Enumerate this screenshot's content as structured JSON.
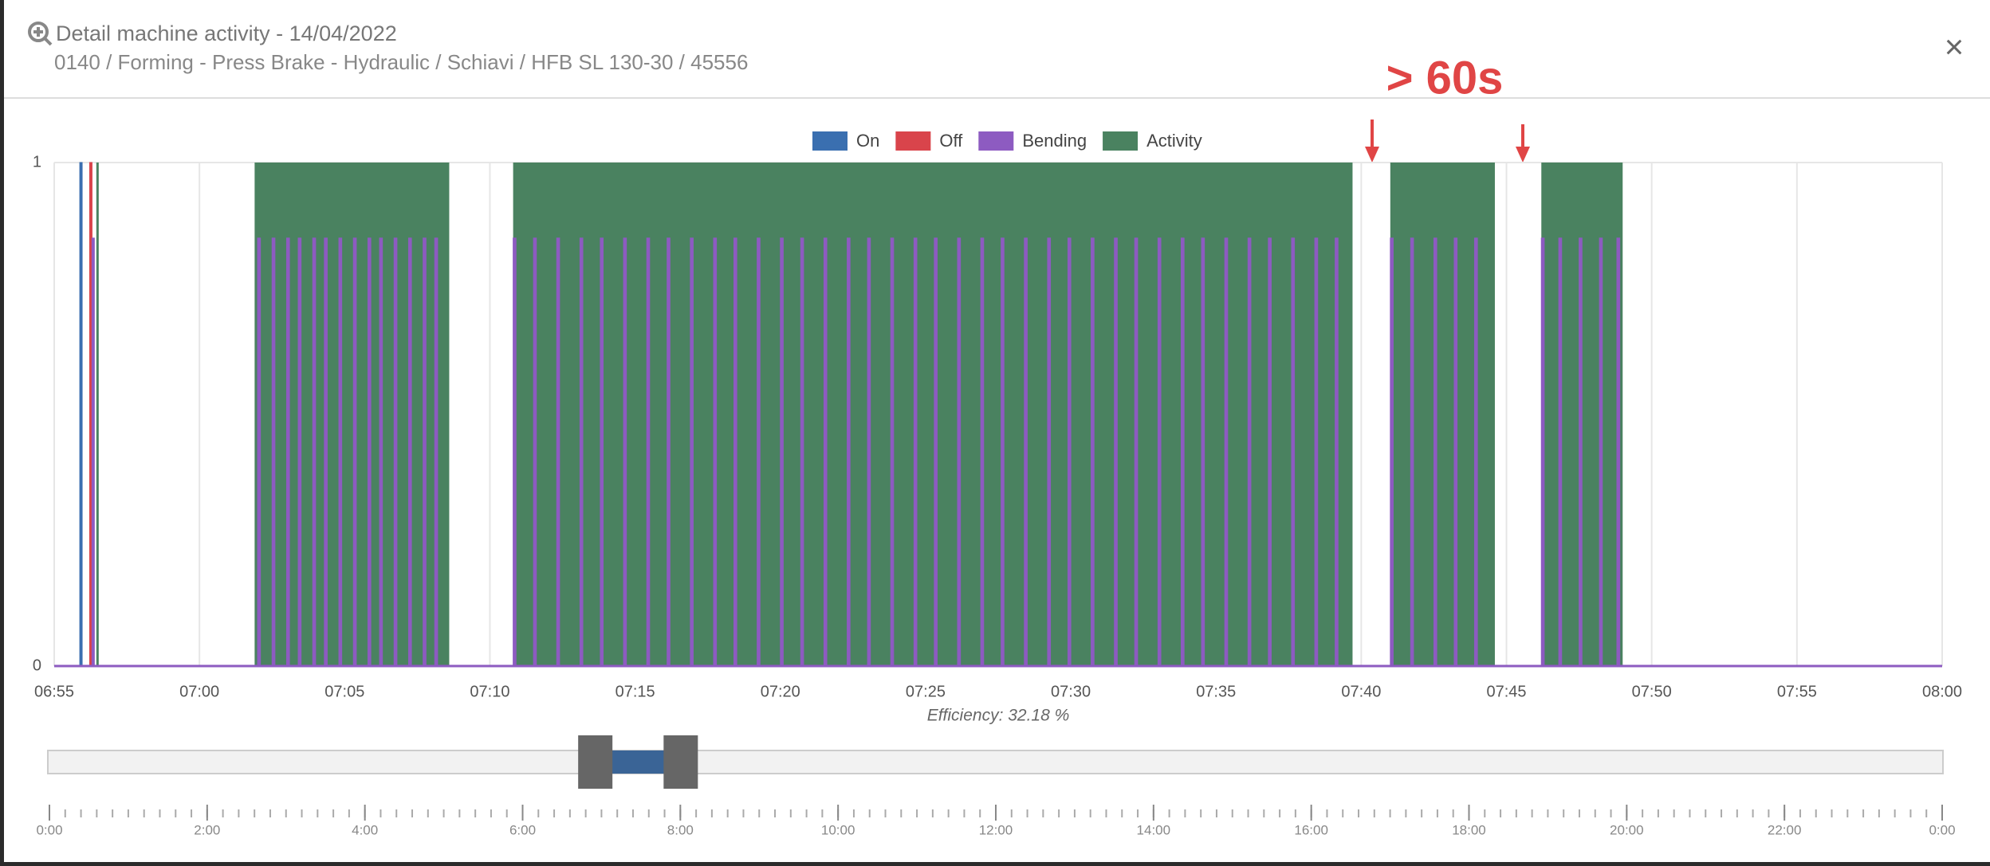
{
  "header": {
    "title": "Detail machine activity - 14/04/2022",
    "subtitle": "0140 / Forming - Press Brake - Hydraulic / Schiavi / HFB SL 130-30 / 45556",
    "close": "×"
  },
  "chart_data": {
    "type": "timeline",
    "annotation": "> 60s",
    "xlim": [
      415,
      480
    ],
    "xticks": [
      {
        "value": 415,
        "label": "06:55"
      },
      {
        "value": 420,
        "label": "07:00"
      },
      {
        "value": 425,
        "label": "07:05"
      },
      {
        "value": 430,
        "label": "07:10"
      },
      {
        "value": 435,
        "label": "07:15"
      },
      {
        "value": 440,
        "label": "07:20"
      },
      {
        "value": 445,
        "label": "07:25"
      },
      {
        "value": 450,
        "label": "07:30"
      },
      {
        "value": 455,
        "label": "07:35"
      },
      {
        "value": 460,
        "label": "07:40"
      },
      {
        "value": 465,
        "label": "07:45"
      },
      {
        "value": 470,
        "label": "07:50"
      },
      {
        "value": 475,
        "label": "07:55"
      },
      {
        "value": 480,
        "label": "08:00"
      }
    ],
    "ylim": [
      0,
      1
    ],
    "yticks": [
      0,
      1
    ],
    "grid": true,
    "series": [
      {
        "name": "On",
        "color": "#3a6fb0",
        "level": 1,
        "intervals": [
          [
            415.88,
            415.95
          ]
        ]
      },
      {
        "name": "Off",
        "color": "#d9444b",
        "level": 1,
        "intervals": [
          [
            416.22,
            416.28
          ]
        ]
      },
      {
        "name": "Bending",
        "color": "#8d5bc1",
        "level": 0.85,
        "intervals": [
          [
            416.3,
            416.36
          ],
          [
            422.0,
            422.1
          ],
          [
            422.5,
            422.6
          ],
          [
            423.0,
            423.1
          ],
          [
            423.4,
            423.5
          ],
          [
            423.9,
            424.0
          ],
          [
            424.3,
            424.4
          ],
          [
            424.8,
            424.9
          ],
          [
            425.3,
            425.4
          ],
          [
            425.8,
            425.9
          ],
          [
            426.2,
            426.3
          ],
          [
            426.7,
            426.8
          ],
          [
            427.2,
            427.3
          ],
          [
            427.7,
            427.8
          ],
          [
            428.1,
            428.2
          ],
          [
            430.8,
            430.9
          ],
          [
            431.5,
            431.6
          ],
          [
            432.3,
            432.4
          ],
          [
            433.1,
            433.2
          ],
          [
            433.8,
            433.9
          ],
          [
            434.6,
            434.7
          ],
          [
            435.4,
            435.5
          ],
          [
            436.1,
            436.2
          ],
          [
            436.9,
            437.0
          ],
          [
            437.7,
            437.8
          ],
          [
            438.4,
            438.5
          ],
          [
            439.2,
            439.3
          ],
          [
            440.0,
            440.1
          ],
          [
            440.7,
            440.8
          ],
          [
            441.5,
            441.6
          ],
          [
            442.3,
            442.4
          ],
          [
            443.0,
            443.1
          ],
          [
            443.8,
            443.9
          ],
          [
            444.6,
            444.7
          ],
          [
            445.3,
            445.4
          ],
          [
            446.1,
            446.2
          ],
          [
            446.9,
            447.0
          ],
          [
            447.6,
            447.7
          ],
          [
            448.4,
            448.5
          ],
          [
            449.2,
            449.3
          ],
          [
            449.9,
            450.0
          ],
          [
            450.7,
            450.8
          ],
          [
            451.5,
            451.6
          ],
          [
            452.2,
            452.3
          ],
          [
            453.0,
            453.1
          ],
          [
            453.8,
            453.9
          ],
          [
            454.5,
            454.6
          ],
          [
            455.3,
            455.4
          ],
          [
            456.1,
            456.2
          ],
          [
            456.8,
            456.9
          ],
          [
            457.6,
            457.7
          ],
          [
            458.4,
            458.5
          ],
          [
            459.1,
            459.2
          ],
          [
            461.0,
            461.1
          ],
          [
            461.7,
            461.8
          ],
          [
            462.5,
            462.6
          ],
          [
            463.2,
            463.3
          ],
          [
            463.9,
            464.0
          ],
          [
            466.2,
            466.3
          ],
          [
            466.8,
            466.9
          ],
          [
            467.5,
            467.6
          ],
          [
            468.2,
            468.3
          ],
          [
            468.8,
            468.9
          ]
        ]
      },
      {
        "name": "Activity",
        "color": "#4a8260",
        "level": 1,
        "intervals": [
          [
            416.45,
            416.52
          ],
          [
            421.9,
            428.6
          ],
          [
            430.8,
            459.7
          ],
          [
            461.0,
            464.6
          ],
          [
            466.2,
            469.0
          ]
        ]
      }
    ],
    "efficiency": "Efficiency: 32.18 %",
    "navigator": {
      "xlim": [
        0,
        1440
      ],
      "range": [
        415,
        480
      ],
      "xticks": [
        {
          "value": 0,
          "label": "0:00"
        },
        {
          "value": 120,
          "label": "2:00"
        },
        {
          "value": 240,
          "label": "4:00"
        },
        {
          "value": 360,
          "label": "6:00"
        },
        {
          "value": 480,
          "label": "8:00"
        },
        {
          "value": 600,
          "label": "10:00"
        },
        {
          "value": 720,
          "label": "12:00"
        },
        {
          "value": 840,
          "label": "14:00"
        },
        {
          "value": 960,
          "label": "16:00"
        },
        {
          "value": 1080,
          "label": "18:00"
        },
        {
          "value": 1200,
          "label": "20:00"
        },
        {
          "value": 1320,
          "label": "22:00"
        },
        {
          "value": 1440,
          "label": "0:00"
        }
      ]
    }
  }
}
